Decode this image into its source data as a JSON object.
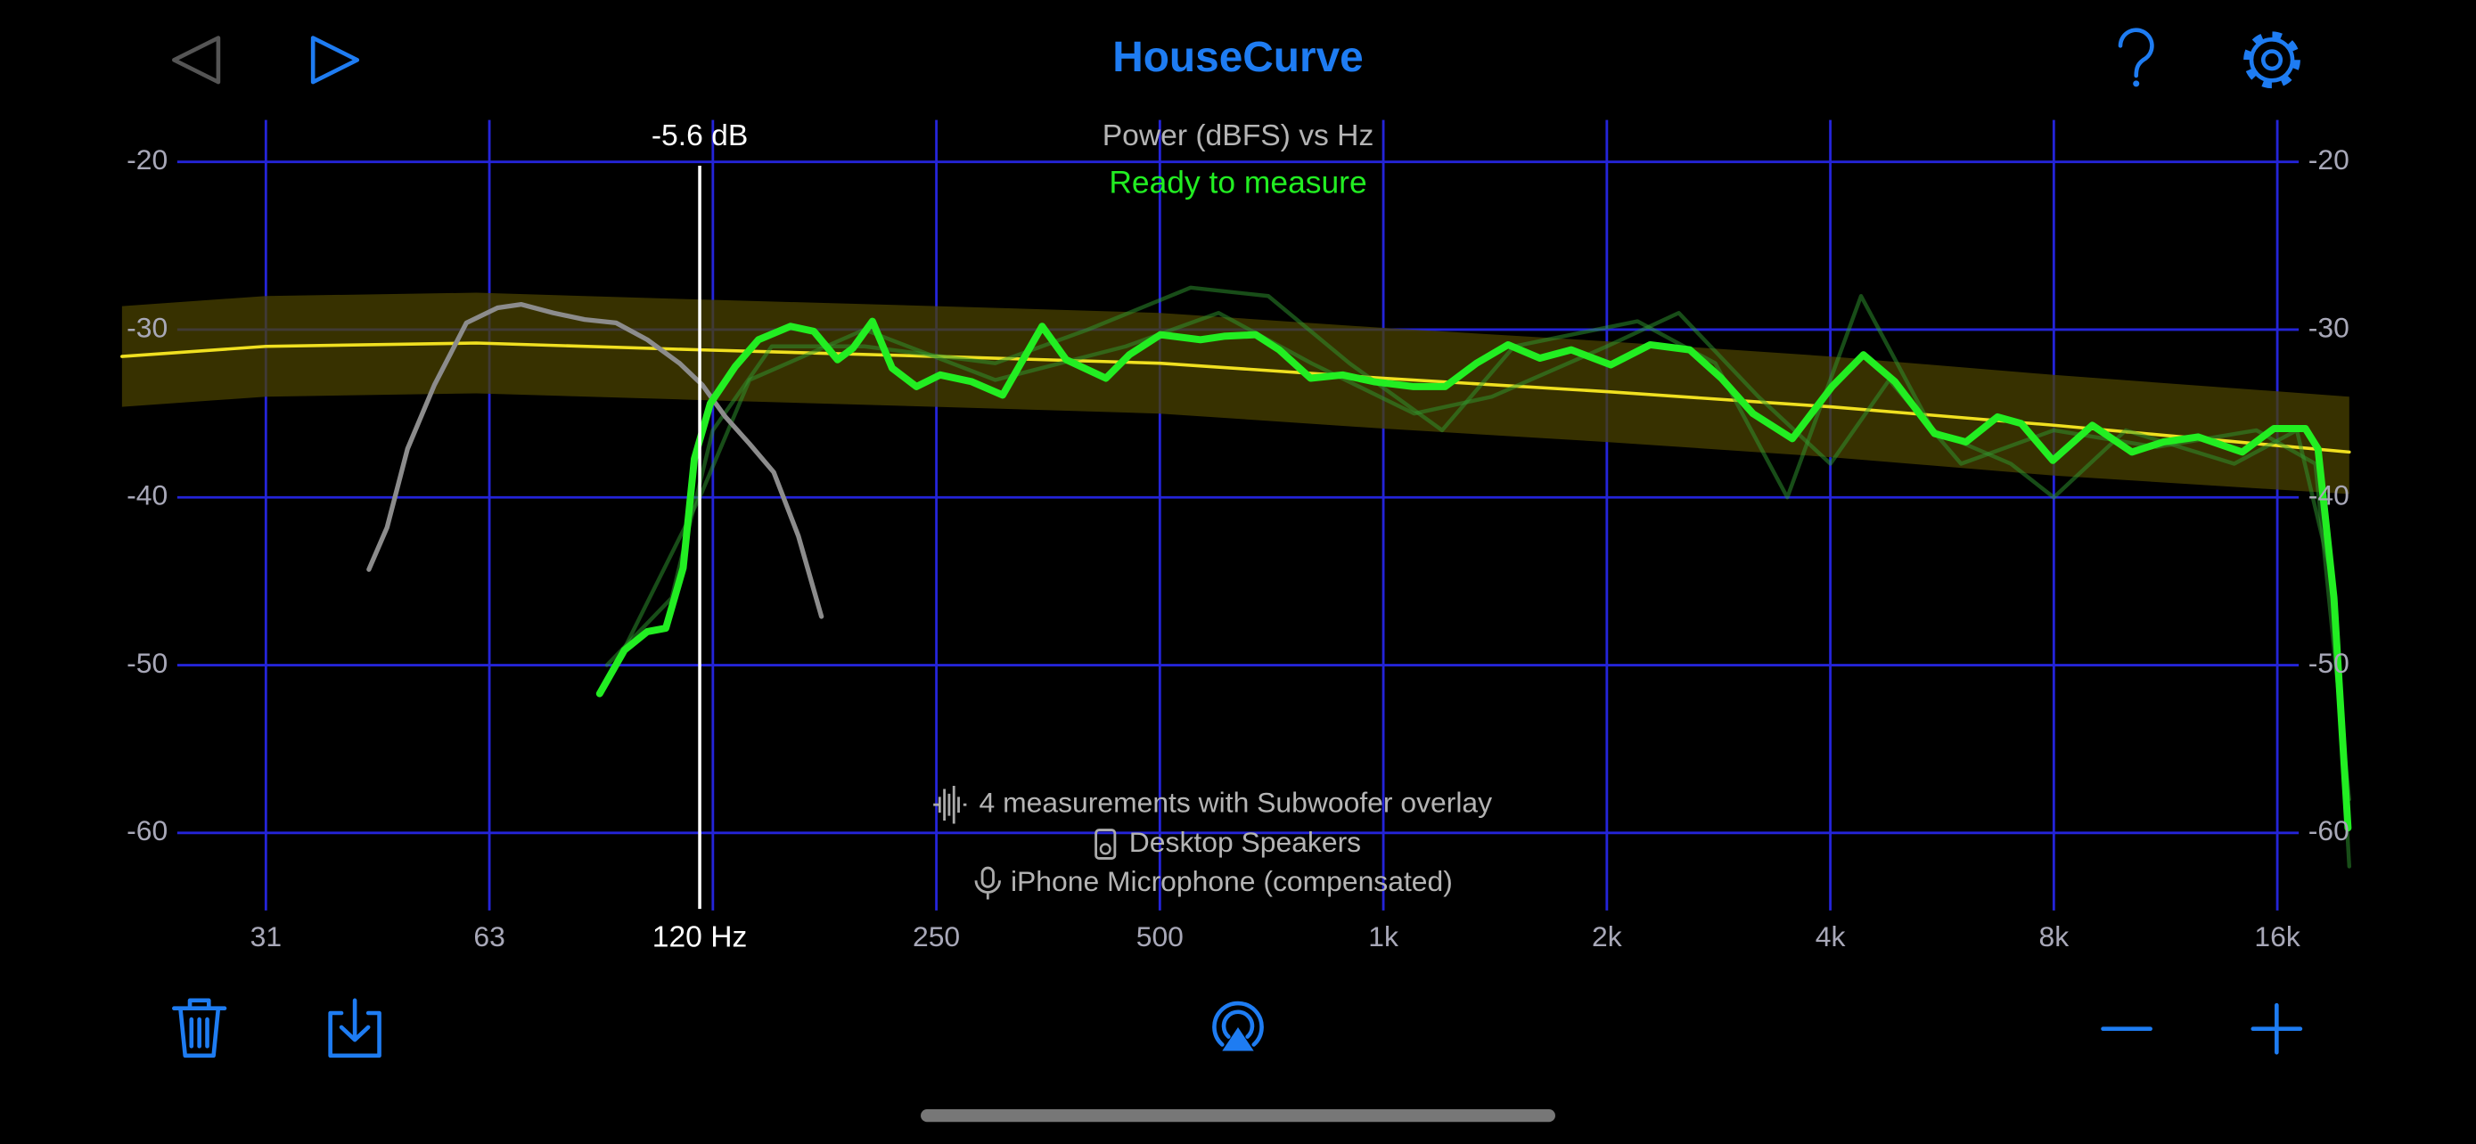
{
  "header": {
    "title": "HouseCurve"
  },
  "chart_data": {
    "type": "line",
    "subtitle": "Power (dBFS) vs Hz",
    "status": "Ready to measure",
    "log_x": true,
    "grid": true,
    "grid_color": "#2424d8",
    "xlim": [
      20,
      20000
    ],
    "xticks": [
      {
        "value": 31.25,
        "label": "31"
      },
      {
        "value": 62.5,
        "label": "63"
      },
      {
        "value": 125,
        "label": null
      },
      250,
      500,
      {
        "value": 1000,
        "label": "1k"
      },
      {
        "value": 2000,
        "label": "2k"
      },
      {
        "value": 4000,
        "label": "4k"
      },
      {
        "value": 8000,
        "label": "8k"
      },
      {
        "value": 16000,
        "label": "16k"
      }
    ],
    "ylim": [
      -65,
      -17.5
    ],
    "yticks": [
      -20,
      -30,
      -40,
      -50,
      -60
    ],
    "band": {
      "color": "#4a4200",
      "opacity": 0.75,
      "x": [
        20,
        31.25,
        60,
        120,
        250,
        500,
        1000,
        2000,
        4000,
        8000,
        20000
      ],
      "upper": [
        -28.6,
        -28.0,
        -27.8,
        -28.2,
        -28.6,
        -29.0,
        -29.9,
        -30.7,
        -31.6,
        -32.7,
        -34.0
      ],
      "lower": [
        -34.6,
        -34.0,
        -33.8,
        -34.2,
        -34.6,
        -35.0,
        -35.9,
        -36.7,
        -37.6,
        -38.7,
        -39.8
      ]
    },
    "series": [
      {
        "color": "#f0e020",
        "width": 2,
        "opacity": 1,
        "x": [
          20,
          31.25,
          60,
          120,
          250,
          500,
          1000,
          2000,
          4000,
          8000,
          20000
        ],
        "values": [
          -31.6,
          -31.0,
          -30.8,
          -31.2,
          -31.6,
          -32.0,
          -32.9,
          -33.7,
          -34.6,
          -35.7,
          -37.3
        ]
      },
      {
        "color": "#2f9a2f",
        "width": 2.5,
        "opacity": 0.5,
        "x": [
          90,
          110,
          125,
          150,
          200,
          300,
          400,
          550,
          700,
          900,
          1200,
          1500,
          2200,
          2800,
          3500,
          4400,
          5500,
          7000,
          8000,
          10000,
          14000,
          17000,
          19000,
          20000
        ],
        "values": [
          -50,
          -46,
          -36,
          -31,
          -31,
          -32,
          -30,
          -27.5,
          -28,
          -32,
          -36,
          -31,
          -29.5,
          -32,
          -40,
          -28,
          -36,
          -38,
          -40,
          -36,
          -38,
          -36,
          -45,
          -62
        ]
      },
      {
        "color": "#2f9a2f",
        "width": 2.5,
        "opacity": 0.5,
        "x": [
          95,
          120,
          140,
          200,
          300,
          450,
          600,
          800,
          1100,
          1400,
          2000,
          2500,
          3200,
          4000,
          4800,
          6000,
          8000,
          11000,
          15000,
          18000,
          20000
        ],
        "values": [
          -49,
          -40,
          -33,
          -30,
          -33,
          -31,
          -29,
          -32,
          -35,
          -34,
          -31,
          -29,
          -34,
          -38,
          -33,
          -38,
          -36,
          -37,
          -36,
          -38,
          -58
        ]
      },
      {
        "color": "#8c8c8c",
        "width": 3,
        "opacity": 1,
        "x": [
          43,
          45.5,
          48.5,
          52.7,
          58.2,
          64.1,
          69,
          76.2,
          84,
          92.6,
          102,
          112.7,
          121,
          130,
          140,
          151,
          163,
          175
        ],
        "values": [
          -44.3,
          -41.8,
          -37.1,
          -33.3,
          -29.6,
          -28.7,
          -28.5,
          -29,
          -29.4,
          -29.6,
          -30.6,
          -32,
          -33.3,
          -35.2,
          -36.8,
          -38.5,
          -42.3,
          -47.1
        ]
      },
      {
        "color": "#22ee22",
        "width": 4.5,
        "opacity": 1,
        "x": [
          88,
          95,
          102,
          108,
          114,
          118,
          124,
          134,
          144,
          159,
          171,
          184,
          193,
          205,
          218,
          235,
          253,
          279,
          307,
          347,
          374,
          423,
          455,
          501,
          567,
          610,
          673,
          724,
          798,
          881,
          971,
          1098,
          1211,
          1335,
          1472,
          1625,
          1791,
          2025,
          2288,
          2587,
          2853,
          3146,
          3556,
          4020,
          4432,
          4888,
          5526,
          6094,
          6720,
          7232,
          7974,
          9013,
          10190,
          11236,
          12512,
          14352,
          15826,
          17452,
          18154,
          19070,
          19920
        ],
        "values": [
          -51.7,
          -49.1,
          -48,
          -47.8,
          -44.2,
          -37.7,
          -34.4,
          -32.2,
          -30.6,
          -29.8,
          -30.1,
          -31.8,
          -31.1,
          -29.5,
          -32.3,
          -33.4,
          -32.7,
          -33.1,
          -33.9,
          -29.8,
          -31.8,
          -32.9,
          -31.5,
          -30.3,
          -30.6,
          -30.4,
          -30.3,
          -31.2,
          -32.9,
          -32.7,
          -33.1,
          -33.4,
          -33.4,
          -32,
          -30.9,
          -31.7,
          -31.2,
          -32.1,
          -30.9,
          -31.2,
          -32.9,
          -35,
          -36.5,
          -33.4,
          -31.5,
          -33.1,
          -36.2,
          -36.7,
          -35.2,
          -35.6,
          -37.8,
          -35.7,
          -37.3,
          -36.7,
          -36.4,
          -37.3,
          -35.9,
          -35.9,
          -37.1,
          -46,
          -59.7
        ]
      }
    ],
    "cursor": {
      "x": 120,
      "x_label": "120 Hz",
      "value_label": "-5.6 dB"
    }
  },
  "info": [
    "4 measurements with Subwoofer overlay",
    "Desktop Speakers",
    "iPhone Microphone (compensated)"
  ]
}
